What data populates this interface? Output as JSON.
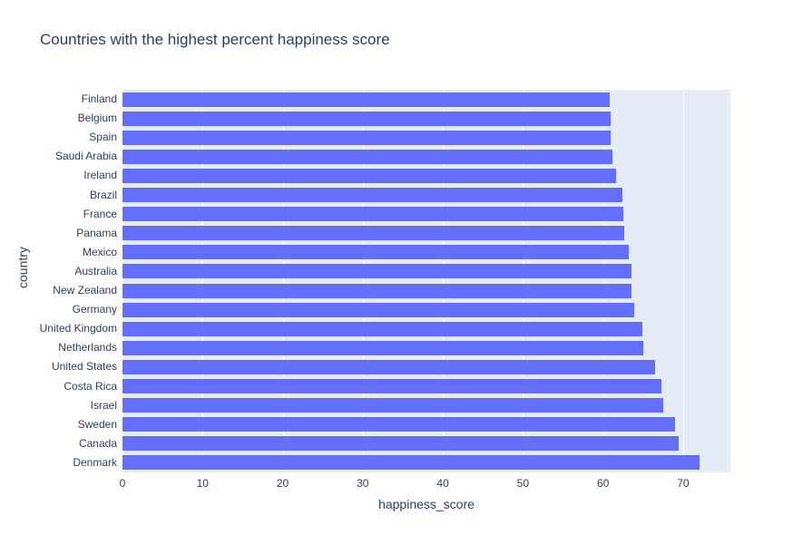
{
  "title": "Countries with the highest percent happiness score",
  "axes": {
    "x_title": "happiness_score",
    "y_title": "country"
  },
  "colors": {
    "bar": "#636efa",
    "plot_background": "#e5ecf6",
    "gridline": "#ffffff",
    "text": "#2a3f5f",
    "page_background": "#ffffff"
  },
  "chart_data": {
    "type": "bar",
    "orientation": "horizontal",
    "title": "Countries with the highest percent happiness score",
    "xlabel": "happiness_score",
    "ylabel": "country",
    "categories": [
      "Finland",
      "Belgium",
      "Spain",
      "Saudi Arabia",
      "Ireland",
      "Brazil",
      "France",
      "Panama",
      "Mexico",
      "Australia",
      "New Zealand",
      "Germany",
      "United Kingdom",
      "Netherlands",
      "United States",
      "Costa Rica",
      "Israel",
      "Sweden",
      "Canada",
      "Denmark"
    ],
    "values": [
      60.8,
      60.9,
      61.0,
      61.2,
      61.6,
      62.4,
      62.5,
      62.7,
      63.2,
      63.5,
      63.6,
      63.9,
      64.9,
      65.0,
      66.5,
      67.3,
      67.5,
      69.0,
      69.4,
      72.1
    ],
    "category_order_note": "listed top-to-bottom as displayed",
    "xlim": [
      0,
      75.9
    ],
    "xticks": [
      0,
      10,
      20,
      30,
      40,
      50,
      60,
      70
    ],
    "grid": true,
    "legend": false
  }
}
